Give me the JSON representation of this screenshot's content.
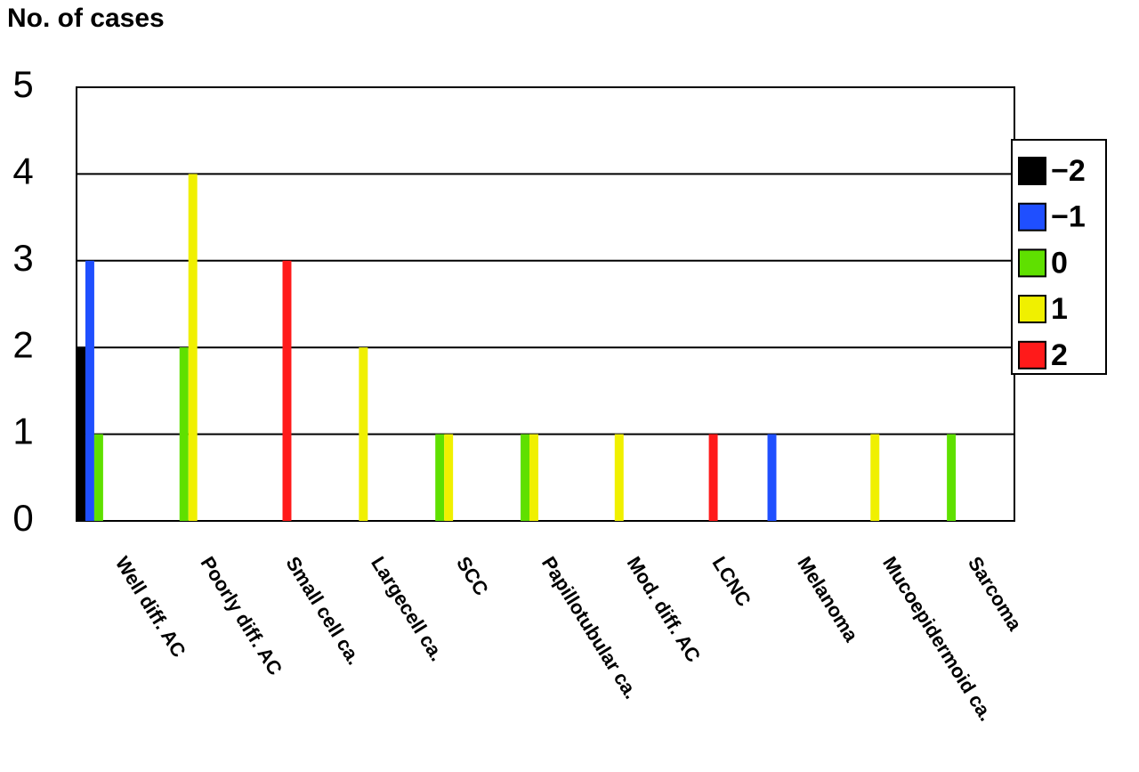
{
  "chart_data": {
    "type": "bar",
    "y_label": "No. of cases",
    "categories": [
      "Well diff. AC",
      "Poorly diff. AC",
      "Small cell ca.",
      "Largecell ca.",
      "SCC",
      "Papillotubular ca.",
      "Mod. diff. AC",
      "LCNC",
      "Melanoma",
      "Mucoepidermoid ca.",
      "Sarcoma"
    ],
    "series": [
      {
        "name": "−2",
        "color": "#000000",
        "values": [
          2,
          0,
          0,
          0,
          0,
          0,
          0,
          0,
          0,
          0,
          0
        ]
      },
      {
        "name": "−1",
        "color": "#1f4fff",
        "values": [
          3,
          0,
          0,
          0,
          0,
          0,
          0,
          0,
          1,
          0,
          0
        ]
      },
      {
        "name": "0",
        "color": "#5fe000",
        "values": [
          1,
          2,
          0,
          0,
          1,
          1,
          0,
          0,
          0,
          0,
          1
        ]
      },
      {
        "name": "1",
        "color": "#f0f000",
        "values": [
          0,
          4,
          0,
          2,
          1,
          1,
          1,
          0,
          0,
          1,
          0
        ]
      },
      {
        "name": "2",
        "color": "#ff1a1a",
        "values": [
          0,
          0,
          3,
          0,
          0,
          0,
          0,
          1,
          0,
          0,
          0
        ]
      }
    ],
    "ylim": [
      0,
      5
    ],
    "yticks": [
      0,
      1,
      2,
      3,
      4,
      5
    ],
    "grid": true,
    "legend": "right"
  }
}
